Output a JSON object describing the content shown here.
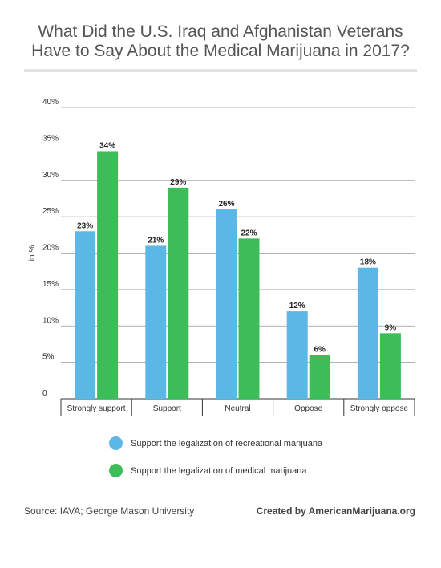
{
  "title_line1": "What Did the U.S. Iraq and Afghanistan Veterans",
  "title_line2": "Have to Say About the Medical Marijuana in 2017?",
  "source": "Source: IAVA; George Mason University",
  "credit": "Created by AmericanMarijuana.org",
  "colors": {
    "recreational": "#5bb8e6",
    "medical": "#3dbd57"
  },
  "chart_data": {
    "type": "bar",
    "title": "What Did the U.S. Iraq and Afghanistan Veterans Have to Say About the Medical Marijuana in 2017?",
    "xlabel": "",
    "ylabel": "in %",
    "ylim": [
      0,
      40
    ],
    "yticks": [
      "0",
      "5%",
      "10%",
      "15%",
      "20%",
      "25%",
      "30%",
      "35%",
      "40%"
    ],
    "grid": true,
    "legend_position": "bottom",
    "categories": [
      "Strongly support",
      "Support",
      "Neutral",
      "Oppose",
      "Strongly oppose"
    ],
    "series": [
      {
        "name": "Support the legalization of recreational marijuana",
        "values": [
          23,
          21,
          26,
          12,
          18
        ],
        "labels": [
          "23%",
          "21%",
          "26%",
          "12%",
          "18%"
        ]
      },
      {
        "name": "Support the legalization of medical marijuana",
        "values": [
          34,
          29,
          22,
          6,
          9
        ],
        "labels": [
          "34%",
          "29%",
          "22%",
          "6%",
          "9%"
        ]
      }
    ]
  }
}
